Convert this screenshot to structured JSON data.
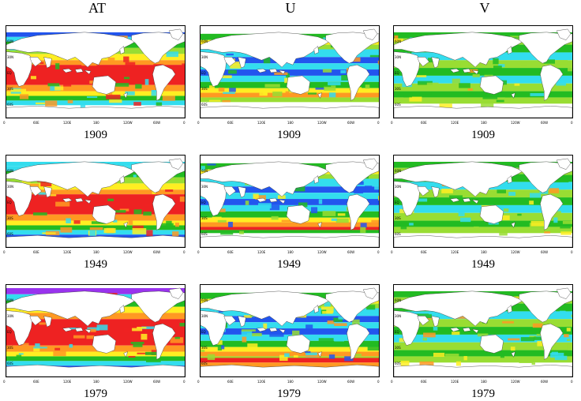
{
  "columns": [
    "AT",
    "U",
    "V"
  ],
  "rows": [
    "1909",
    "1949",
    "1979"
  ],
  "lat_ticks": [
    "60N",
    "30N",
    "EQ",
    "30S",
    "60S"
  ],
  "lon_ticks": [
    "0",
    "60E",
    "120E",
    "180",
    "120W",
    "60W",
    "0"
  ],
  "palette": {
    "red": "#ee2222",
    "orange": "#ff9922",
    "yellow": "#ffee22",
    "lightgreen": "#99dd33",
    "green": "#22bb22",
    "cyan": "#33ddee",
    "blue": "#2255ee",
    "purple": "#9933ee"
  }
}
